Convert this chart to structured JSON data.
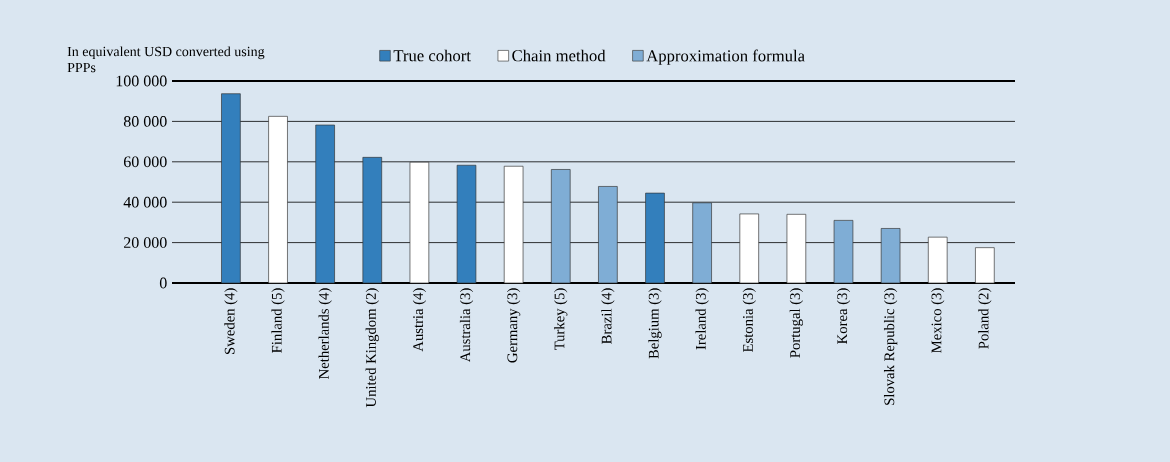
{
  "chart_data": {
    "type": "bar",
    "ylabel": "In equivalent USD converted using PPPs",
    "categories": [
      "Sweden (4)",
      "Finland (5)",
      "Netherlands (4)",
      "United Kingdom (2)",
      "Austria (4)",
      "Australia (3)",
      "Germany (3)",
      "Turkey (5)",
      "Brazil (4)",
      "Belgium (3)",
      "Ireland (3)",
      "Estonia (3)",
      "Portugal (3)",
      "Korea (3)",
      "Slovak Republic (3)",
      "Mexico (3)",
      "Poland (2)"
    ],
    "series": [
      {
        "name": "True cohort",
        "color": "#337fbc",
        "values": [
          93700,
          null,
          78200,
          62200,
          null,
          58300,
          null,
          null,
          null,
          44500,
          null,
          null,
          null,
          null,
          null,
          null,
          null
        ]
      },
      {
        "name": "Chain method",
        "color": "#ffffff",
        "values": [
          null,
          82500,
          null,
          null,
          59800,
          null,
          57800,
          null,
          null,
          null,
          null,
          34200,
          34000,
          null,
          null,
          22700,
          17500
        ]
      },
      {
        "name": "Approximation formula",
        "color": "#7fadd5",
        "values": [
          null,
          null,
          null,
          null,
          null,
          null,
          null,
          56200,
          47800,
          null,
          39700,
          null,
          null,
          31000,
          27000,
          null,
          null
        ]
      }
    ],
    "ylim": [
      0,
      100000
    ],
    "yticks": [
      {
        "value": 0,
        "label": "0"
      },
      {
        "value": 20000,
        "label": "20 000"
      },
      {
        "value": 40000,
        "label": "40 000"
      },
      {
        "value": 60000,
        "label": "60 000"
      },
      {
        "value": 80000,
        "label": "80 000"
      },
      {
        "value": 100000,
        "label": "100 000"
      }
    ],
    "grid": "y",
    "legend": "top"
  }
}
